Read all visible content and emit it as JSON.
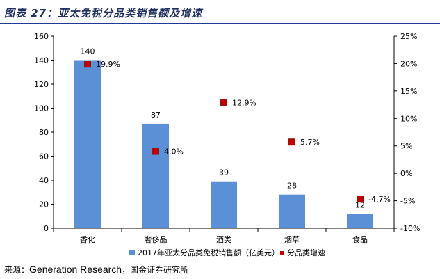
{
  "figure_title": "图表 27：亚太免税分品类销售额及增速",
  "source": {
    "prefix": "来源：",
    "name": "Generation Research",
    "suffix": "，国金证券研究所"
  },
  "colors": {
    "bar": "#5b8fd6",
    "marker": "#c00000",
    "marker_edge": "#8b1a1a",
    "title": "#1f2f5f",
    "rule": "#1f3a93"
  },
  "chart_data": {
    "type": "bar",
    "categories": [
      "香化",
      "奢侈品",
      "酒类",
      "烟草",
      "食品"
    ],
    "series": [
      {
        "name": "2017年亚太分品类免税销售额（亿美元）",
        "kind": "bar",
        "axis": "left",
        "values": [
          140,
          87,
          39,
          28,
          12
        ],
        "labels": [
          "140",
          "87",
          "39",
          "28",
          "12"
        ]
      },
      {
        "name": "分品类增速",
        "kind": "scatter",
        "axis": "right",
        "values": [
          19.9,
          4.0,
          12.9,
          5.7,
          -4.7
        ],
        "labels": [
          "19.9%",
          "4.0%",
          "12.9%",
          "5.7%",
          "-4.7%"
        ]
      }
    ],
    "left_axis": {
      "min": 0,
      "max": 160,
      "step": 20,
      "ticks": [
        "0",
        "20",
        "40",
        "60",
        "80",
        "100",
        "120",
        "140",
        "160"
      ]
    },
    "right_axis": {
      "min": -10,
      "max": 25,
      "step": 5,
      "ticks": [
        "-10%",
        "-5%",
        "0%",
        "5%",
        "10%",
        "15%",
        "20%",
        "25%"
      ]
    },
    "grid": false,
    "legend_position": "bottom"
  }
}
